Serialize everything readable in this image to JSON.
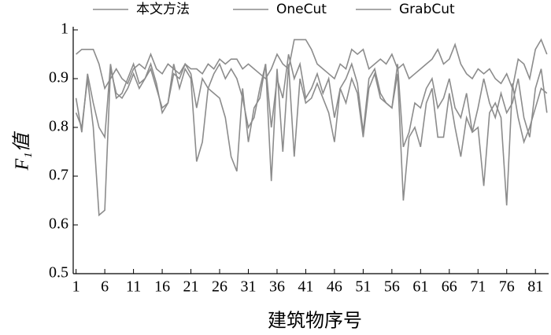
{
  "chart_data": {
    "type": "line",
    "x_label": "建筑物序号",
    "y_label": "F₁值",
    "x": [
      1,
      2,
      3,
      4,
      5,
      6,
      7,
      8,
      9,
      10,
      11,
      12,
      13,
      14,
      15,
      16,
      17,
      18,
      19,
      20,
      21,
      22,
      23,
      24,
      25,
      26,
      27,
      28,
      29,
      30,
      31,
      32,
      33,
      34,
      35,
      36,
      37,
      38,
      39,
      40,
      41,
      42,
      43,
      44,
      45,
      46,
      47,
      48,
      49,
      50,
      51,
      52,
      53,
      54,
      55,
      56,
      57,
      58,
      59,
      60,
      61,
      62,
      63,
      64,
      65,
      66,
      67,
      68,
      69,
      70,
      71,
      72,
      73,
      74,
      75,
      76,
      77,
      78,
      79,
      80,
      81,
      82,
      83
    ],
    "xlim": [
      0.5,
      83.3
    ],
    "xticks": [
      1,
      6,
      11,
      16,
      21,
      26,
      31,
      36,
      41,
      46,
      51,
      56,
      61,
      66,
      71,
      76,
      81
    ],
    "ylim": [
      0.5,
      1
    ],
    "yticks": [
      0.5,
      0.6,
      0.7,
      0.8,
      0.9,
      1
    ],
    "legend": "top",
    "series": [
      {
        "name": "本文方法",
        "color": "#8c8c8c",
        "values": [
          0.95,
          0.96,
          0.96,
          0.96,
          0.93,
          0.88,
          0.9,
          0.92,
          0.9,
          0.89,
          0.92,
          0.93,
          0.92,
          0.95,
          0.92,
          0.91,
          0.93,
          0.92,
          0.91,
          0.93,
          0.92,
          0.92,
          0.91,
          0.93,
          0.92,
          0.94,
          0.93,
          0.94,
          0.94,
          0.92,
          0.93,
          0.92,
          0.91,
          0.9,
          0.92,
          0.95,
          0.93,
          0.92,
          0.98,
          0.98,
          0.98,
          0.96,
          0.93,
          0.92,
          0.91,
          0.9,
          0.93,
          0.92,
          0.96,
          0.95,
          0.96,
          0.92,
          0.93,
          0.94,
          0.93,
          0.95,
          0.92,
          0.93,
          0.9,
          0.91,
          0.92,
          0.93,
          0.94,
          0.96,
          0.93,
          0.94,
          0.97,
          0.93,
          0.91,
          0.9,
          0.92,
          0.91,
          0.92,
          0.9,
          0.89,
          0.91,
          0.88,
          0.94,
          0.93,
          0.9,
          0.96,
          0.98,
          0.95
        ]
      },
      {
        "name": "OneCut",
        "color": "#8c8c8c",
        "values": [
          0.86,
          0.79,
          0.91,
          0.85,
          0.8,
          0.78,
          0.93,
          0.86,
          0.87,
          0.9,
          0.93,
          0.89,
          0.9,
          0.92,
          0.88,
          0.84,
          0.85,
          0.91,
          0.9,
          0.93,
          0.91,
          0.84,
          0.9,
          0.88,
          0.91,
          0.93,
          0.9,
          0.92,
          0.9,
          0.86,
          0.8,
          0.82,
          0.88,
          0.93,
          0.8,
          0.9,
          0.86,
          0.95,
          0.9,
          0.93,
          0.86,
          0.88,
          0.91,
          0.87,
          0.9,
          0.82,
          0.88,
          0.9,
          0.93,
          0.89,
          0.79,
          0.9,
          0.92,
          0.87,
          0.85,
          0.84,
          0.93,
          0.76,
          0.79,
          0.85,
          0.84,
          0.88,
          0.9,
          0.84,
          0.86,
          0.9,
          0.84,
          0.82,
          0.87,
          0.79,
          0.84,
          0.9,
          0.85,
          0.82,
          0.87,
          0.83,
          0.85,
          0.9,
          0.82,
          0.78,
          0.88,
          0.92,
          0.83
        ]
      },
      {
        "name": "GrabCut",
        "color": "#8c8c8c",
        "values": [
          0.83,
          0.8,
          0.9,
          0.8,
          0.62,
          0.63,
          0.92,
          0.87,
          0.86,
          0.88,
          0.91,
          0.88,
          0.9,
          0.93,
          0.89,
          0.83,
          0.85,
          0.93,
          0.88,
          0.92,
          0.9,
          0.73,
          0.77,
          0.88,
          0.87,
          0.86,
          0.82,
          0.74,
          0.71,
          0.88,
          0.77,
          0.84,
          0.86,
          0.93,
          0.69,
          0.92,
          0.75,
          0.93,
          0.74,
          0.9,
          0.85,
          0.86,
          0.89,
          0.86,
          0.83,
          0.77,
          0.88,
          0.85,
          0.9,
          0.87,
          0.78,
          0.88,
          0.91,
          0.86,
          0.85,
          0.84,
          0.91,
          0.65,
          0.78,
          0.8,
          0.76,
          0.85,
          0.88,
          0.78,
          0.78,
          0.87,
          0.8,
          0.74,
          0.82,
          0.79,
          0.8,
          0.68,
          0.83,
          0.85,
          0.82,
          0.64,
          0.89,
          0.82,
          0.77,
          0.8,
          0.84,
          0.88,
          0.87
        ]
      }
    ]
  }
}
